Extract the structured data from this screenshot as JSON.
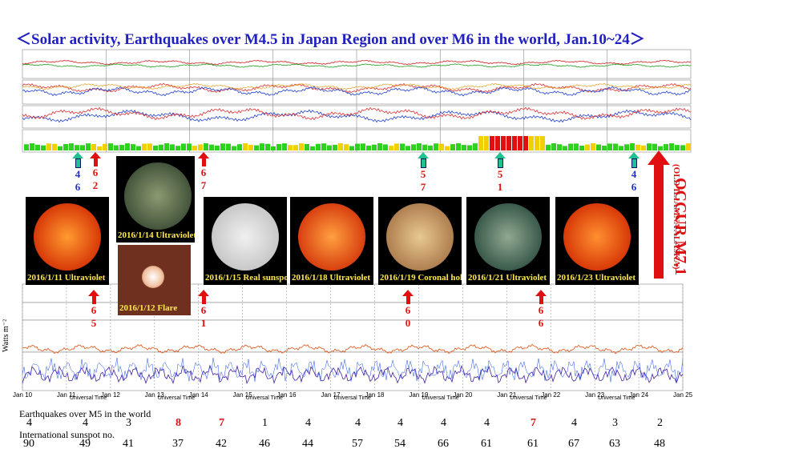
{
  "title": "＜Solar activity, Earthquakes over M4.5 in Japan Region and over M6 in the world, Jan.10~24＞",
  "top_arrows": [
    {
      "upper": "4",
      "lower": "6"
    },
    {
      "upper": "6",
      "lower": "2"
    },
    {
      "upper": "6",
      "lower": "7"
    },
    {
      "upper": "5",
      "lower": "7"
    },
    {
      "upper": "5",
      "lower": "1"
    },
    {
      "upper": "4",
      "lower": "6"
    }
  ],
  "big_arrow": {
    "text": "OCCUR M7.1",
    "note": "(OLD ILIAMNA ALASKA)"
  },
  "images": [
    {
      "label": "2016/1/11 Ultraviolet"
    },
    {
      "label": "2016/1/14 Ultraviolet"
    },
    {
      "label": "2016/1/12 Flare"
    },
    {
      "label": "2016/1/15 Real sunspot"
    },
    {
      "label": "2016/1/18 Ultraviolet"
    },
    {
      "label": "2016/1/19 Coronal hole"
    },
    {
      "label": "2016/1/21 Ultraviolet"
    },
    {
      "label": "2016/1/23 Ultraviolet"
    }
  ],
  "bottom_arrows": [
    {
      "upper": "6",
      "lower": "5"
    },
    {
      "upper": "6",
      "lower": "1"
    },
    {
      "upper": "6",
      "lower": "0"
    },
    {
      "upper": "6",
      "lower": "6"
    }
  ],
  "axis": {
    "ylabel": "Watts m⁻²",
    "xlabel": "Universal Time",
    "dates": [
      "Jan 10",
      "Jan 11",
      "Jan 12",
      "Jan 13",
      "Jan 14",
      "Jan 15",
      "Jan 16",
      "Jan 17",
      "Jan 18",
      "Jan 19",
      "Jan 20",
      "Jan 21",
      "Jan 22",
      "Jan 23",
      "Jan 24",
      "Jan 25"
    ]
  },
  "earthquakes": {
    "label": "Earthquakes over M5 in the world",
    "values": [
      4,
      4,
      3,
      8,
      7,
      1,
      4,
      4,
      4,
      4,
      4,
      7,
      4,
      3,
      2
    ]
  },
  "sunspots": {
    "label": "International sunspot no.",
    "values": [
      90,
      49,
      41,
      37,
      42,
      46,
      44,
      57,
      54,
      66,
      61,
      61,
      67,
      63,
      48
    ]
  }
}
